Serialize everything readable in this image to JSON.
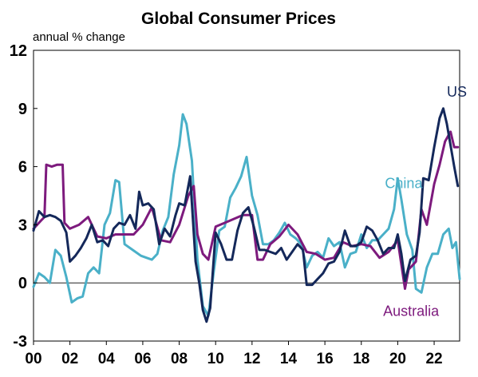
{
  "chart_data": {
    "type": "line",
    "title": "Global Consumer Prices",
    "ylabel": "annual % change",
    "xlabel": "",
    "ylim": [
      -3,
      12
    ],
    "yticks": [
      "-3",
      "0",
      "3",
      "6",
      "9",
      "12"
    ],
    "xlim": [
      2000,
      2023.4
    ],
    "xticks": [
      "00",
      "02",
      "04",
      "06",
      "08",
      "10",
      "12",
      "14",
      "16",
      "18",
      "20",
      "22"
    ],
    "zero_line": true,
    "grid": false,
    "legend": "direct labels on lines",
    "colors": {
      "US": "#14285a",
      "China": "#4ab0c8",
      "Australia": "#7d1a7d"
    },
    "series": [
      {
        "name": "US",
        "x": [
          2000.0,
          2000.3,
          2000.6,
          2000.9,
          2001.2,
          2001.5,
          2001.8,
          2002.0,
          2002.3,
          2002.6,
          2002.9,
          2003.2,
          2003.5,
          2003.8,
          2004.1,
          2004.4,
          2004.7,
          2005.0,
          2005.3,
          2005.6,
          2005.8,
          2006.0,
          2006.3,
          2006.6,
          2006.9,
          2007.2,
          2007.5,
          2007.8,
          2008.0,
          2008.3,
          2008.6,
          2008.9,
          2009.1,
          2009.3,
          2009.5,
          2009.7,
          2010.0,
          2010.3,
          2010.6,
          2010.9,
          2011.2,
          2011.5,
          2011.8,
          2012.1,
          2012.4,
          2012.7,
          2013.0,
          2013.3,
          2013.6,
          2013.9,
          2014.2,
          2014.5,
          2014.8,
          2015.0,
          2015.3,
          2015.6,
          2015.9,
          2016.2,
          2016.5,
          2016.8,
          2017.1,
          2017.4,
          2017.7,
          2018.0,
          2018.3,
          2018.6,
          2018.9,
          2019.2,
          2019.5,
          2019.8,
          2020.0,
          2020.2,
          2020.4,
          2020.7,
          2021.0,
          2021.2,
          2021.4,
          2021.7,
          2022.0,
          2022.3,
          2022.5,
          2022.7,
          2022.9,
          2023.1,
          2023.3
        ],
        "values": [
          2.7,
          3.7,
          3.4,
          3.5,
          3.4,
          3.2,
          2.6,
          1.1,
          1.4,
          1.8,
          2.3,
          3.0,
          2.1,
          2.2,
          1.9,
          2.8,
          3.1,
          3.0,
          3.5,
          2.8,
          4.7,
          4.0,
          4.1,
          3.8,
          2.0,
          2.8,
          2.4,
          3.5,
          4.1,
          4.0,
          5.5,
          1.1,
          0.0,
          -1.4,
          -2.0,
          -1.3,
          2.6,
          2.0,
          1.2,
          1.2,
          2.7,
          3.6,
          3.9,
          2.9,
          1.7,
          1.7,
          1.6,
          1.5,
          1.8,
          1.2,
          1.6,
          2.0,
          1.7,
          -0.1,
          -0.1,
          0.2,
          0.5,
          1.0,
          1.1,
          1.6,
          2.7,
          1.9,
          1.9,
          2.1,
          2.9,
          2.7,
          2.2,
          1.5,
          1.8,
          1.8,
          2.5,
          1.5,
          0.1,
          1.2,
          1.4,
          2.6,
          5.4,
          5.3,
          7.0,
          8.5,
          9.0,
          8.2,
          7.1,
          6.0,
          5.0
        ]
      },
      {
        "name": "China",
        "x": [
          2000.0,
          2000.3,
          2000.6,
          2000.9,
          2001.2,
          2001.5,
          2001.8,
          2002.1,
          2002.4,
          2002.7,
          2003.0,
          2003.3,
          2003.6,
          2003.9,
          2004.2,
          2004.5,
          2004.7,
          2005.0,
          2005.3,
          2005.6,
          2005.9,
          2006.2,
          2006.5,
          2006.8,
          2007.1,
          2007.4,
          2007.7,
          2008.0,
          2008.2,
          2008.4,
          2008.7,
          2009.0,
          2009.3,
          2009.6,
          2009.9,
          2010.2,
          2010.5,
          2010.8,
          2011.1,
          2011.4,
          2011.7,
          2012.0,
          2012.3,
          2012.6,
          2012.9,
          2013.2,
          2013.5,
          2013.8,
          2014.1,
          2014.4,
          2014.7,
          2015.0,
          2015.3,
          2015.6,
          2015.9,
          2016.2,
          2016.5,
          2016.8,
          2017.1,
          2017.4,
          2017.7,
          2018.0,
          2018.3,
          2018.6,
          2018.9,
          2019.2,
          2019.5,
          2019.8,
          2020.0,
          2020.2,
          2020.5,
          2020.8,
          2021.0,
          2021.3,
          2021.6,
          2021.9,
          2022.2,
          2022.5,
          2022.8,
          2023.0,
          2023.2,
          2023.4
        ],
        "values": [
          -0.2,
          0.5,
          0.3,
          0.0,
          1.7,
          1.4,
          0.3,
          -1.0,
          -0.8,
          -0.7,
          0.5,
          0.8,
          0.5,
          3.0,
          3.6,
          5.3,
          5.2,
          2.0,
          1.8,
          1.6,
          1.4,
          1.3,
          1.2,
          1.5,
          2.7,
          3.4,
          5.6,
          7.1,
          8.7,
          8.2,
          6.3,
          1.2,
          -1.2,
          -1.7,
          0.6,
          2.7,
          2.9,
          4.4,
          4.9,
          5.5,
          6.5,
          4.5,
          3.5,
          2.0,
          2.0,
          2.2,
          2.6,
          3.1,
          2.5,
          2.3,
          2.0,
          0.8,
          1.4,
          1.6,
          1.3,
          2.3,
          1.9,
          2.1,
          0.8,
          1.5,
          1.6,
          2.5,
          1.8,
          2.2,
          2.2,
          2.5,
          2.8,
          3.8,
          5.4,
          4.3,
          2.5,
          1.7,
          -0.3,
          -0.5,
          0.8,
          1.5,
          1.5,
          2.5,
          2.8,
          1.8,
          2.1,
          0.2
        ]
      },
      {
        "name": "Australia",
        "x": [
          2000.0,
          2000.4,
          2000.6,
          2000.7,
          2001.0,
          2001.3,
          2001.6,
          2001.7,
          2002.0,
          2002.5,
          2003.0,
          2003.5,
          2004.0,
          2004.5,
          2005.0,
          2005.5,
          2006.0,
          2006.5,
          2007.0,
          2007.5,
          2008.0,
          2008.5,
          2008.8,
          2009.0,
          2009.3,
          2009.6,
          2010.0,
          2010.5,
          2011.0,
          2011.5,
          2012.0,
          2012.3,
          2012.6,
          2013.0,
          2013.5,
          2014.0,
          2014.5,
          2015.0,
          2015.5,
          2016.0,
          2016.5,
          2017.0,
          2017.5,
          2018.0,
          2018.5,
          2019.0,
          2019.5,
          2020.0,
          2020.4,
          2020.6,
          2020.8,
          2021.0,
          2021.3,
          2021.6,
          2022.0,
          2022.3,
          2022.6,
          2022.9,
          2023.1,
          2023.3
        ],
        "values": [
          2.8,
          3.2,
          3.4,
          6.1,
          6.0,
          6.1,
          6.1,
          3.1,
          2.8,
          3.0,
          3.4,
          2.4,
          2.3,
          2.5,
          2.5,
          2.5,
          3.0,
          3.9,
          2.2,
          2.1,
          3.0,
          4.5,
          5.0,
          2.5,
          1.5,
          1.2,
          2.9,
          3.1,
          3.3,
          3.5,
          3.5,
          1.2,
          1.2,
          2.0,
          2.4,
          3.0,
          2.5,
          1.6,
          1.5,
          1.2,
          1.3,
          2.1,
          1.9,
          2.0,
          1.9,
          1.3,
          1.6,
          2.2,
          -0.3,
          0.7,
          0.9,
          1.1,
          3.8,
          3.0,
          5.1,
          6.1,
          7.3,
          7.8,
          7.0,
          7.0
        ]
      }
    ],
    "labels": [
      {
        "series": "US",
        "text": "US",
        "x": 2022.7,
        "y": 9.6
      },
      {
        "series": "China",
        "text": "China",
        "x": 2019.3,
        "y": 4.9
      },
      {
        "series": "Australia",
        "text": "Australia",
        "x": 2019.2,
        "y": -1.7
      }
    ]
  }
}
